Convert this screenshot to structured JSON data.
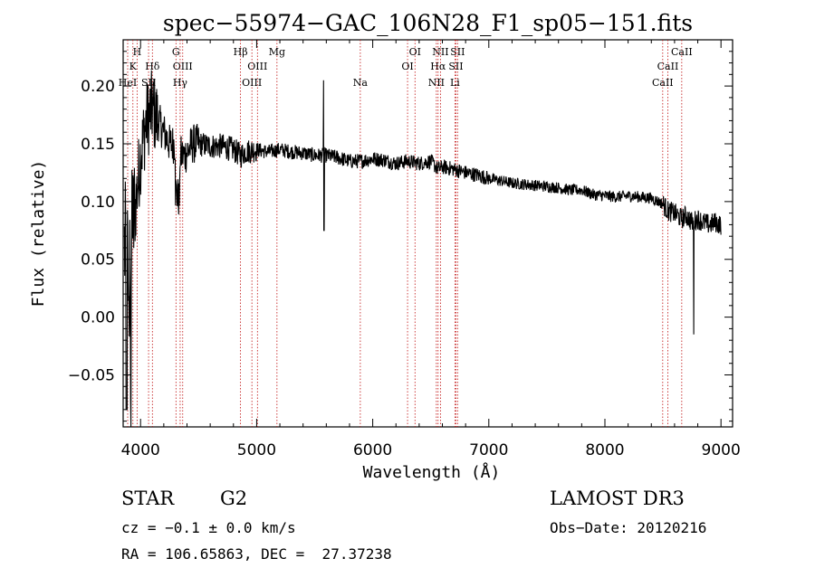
{
  "chart_data": {
    "type": "line",
    "title": "spec−55974−GAC_106N28_F1_sp05−151.fits",
    "xlabel": "Wavelength (Å)",
    "ylabel": "Flux (relative)",
    "xlim": [
      3850,
      9100
    ],
    "ylim": [
      -0.095,
      0.24
    ],
    "x_ticks": [
      4000,
      5000,
      6000,
      7000,
      8000,
      9000
    ],
    "x_tick_labels": [
      "4000",
      "5000",
      "6000",
      "7000",
      "8000",
      "9000"
    ],
    "y_ticks": [
      -0.05,
      0.0,
      0.05,
      0.1,
      0.15,
      0.2
    ],
    "y_tick_labels": [
      "−0.05",
      "0.00",
      "0.05",
      "0.10",
      "0.15",
      "0.20"
    ],
    "series": [
      {
        "name": "spectrum",
        "x": [
          3860,
          3900,
          3950,
          4000,
          4050,
          4100,
          4150,
          4200,
          4250,
          4300,
          4340,
          4380,
          4450,
          4500,
          4600,
          4700,
          4800,
          4861,
          4900,
          5000,
          5100,
          5200,
          5300,
          5400,
          5500,
          5577,
          5600,
          5700,
          5800,
          5893,
          6000,
          6100,
          6200,
          6300,
          6400,
          6500,
          6563,
          6600,
          6700,
          6800,
          6900,
          7000,
          7100,
          7200,
          7300,
          7400,
          7500,
          7600,
          7700,
          7800,
          7900,
          8000,
          8100,
          8200,
          8300,
          8400,
          8500,
          8542,
          8600,
          8662,
          8700,
          8750,
          8800,
          8850,
          8900,
          8950,
          9000
        ],
        "y": [
          0.06,
          0.05,
          0.09,
          0.14,
          0.17,
          0.18,
          0.17,
          0.16,
          0.15,
          0.15,
          0.14,
          0.14,
          0.15,
          0.15,
          0.148,
          0.148,
          0.145,
          0.14,
          0.143,
          0.145,
          0.143,
          0.145,
          0.143,
          0.142,
          0.14,
          0.14,
          0.14,
          0.138,
          0.135,
          0.135,
          0.137,
          0.136,
          0.133,
          0.135,
          0.133,
          0.135,
          0.128,
          0.13,
          0.128,
          0.125,
          0.123,
          0.12,
          0.118,
          0.116,
          0.115,
          0.114,
          0.113,
          0.112,
          0.11,
          0.11,
          0.106,
          0.105,
          0.104,
          0.105,
          0.104,
          0.103,
          0.098,
          0.092,
          0.09,
          0.085,
          0.088,
          0.082,
          0.085,
          0.082,
          0.08,
          0.082,
          0.08
        ]
      }
    ],
    "line_markers": [
      {
        "label": "H",
        "x": 3970,
        "row": 0
      },
      {
        "label": "K",
        "x": 3934,
        "row": 1
      },
      {
        "label": "Hδ",
        "x": 4102,
        "row": 1
      },
      {
        "label": "HeI",
        "x": 3889,
        "row": 2
      },
      {
        "label": "SII",
        "x": 4069,
        "row": 2
      },
      {
        "label": "G",
        "x": 4305,
        "row": 0
      },
      {
        "label": "OIII",
        "x": 4363,
        "row": 1
      },
      {
        "label": "Hγ",
        "x": 4341,
        "row": 2
      },
      {
        "label": "Hβ",
        "x": 4861,
        "row": 0
      },
      {
        "label": "OIII",
        "x": 5007,
        "row": 1
      },
      {
        "label": "OIII",
        "x": 4959,
        "row": 2
      },
      {
        "label": "Mg",
        "x": 5175,
        "row": 0
      },
      {
        "label": "Na",
        "x": 5893,
        "row": 2
      },
      {
        "label": "OI",
        "x": 6364,
        "row": 0
      },
      {
        "label": "OI",
        "x": 6300,
        "row": 1
      },
      {
        "label": "NII",
        "x": 6584,
        "row": 0
      },
      {
        "label": "SII",
        "x": 6731,
        "row": 0
      },
      {
        "label": "Hα",
        "x": 6563,
        "row": 1
      },
      {
        "label": "SII",
        "x": 6717,
        "row": 1
      },
      {
        "label": "NII",
        "x": 6548,
        "row": 2
      },
      {
        "label": "Li",
        "x": 6708,
        "row": 2
      },
      {
        "label": "CaII",
        "x": 8662,
        "row": 0
      },
      {
        "label": "CaII",
        "x": 8542,
        "row": 1
      },
      {
        "label": "CaII",
        "x": 8498,
        "row": 2
      }
    ],
    "grid": false,
    "legend": "none"
  },
  "info": {
    "object_class": "STAR",
    "subclass": "G2",
    "survey": "LAMOST DR3",
    "redshift": "cz = −0.1 ± 0.0 km/s",
    "obs_date": "Obs−Date: 20120216",
    "coords": "RA = 106.65863, DEC =  27.37238"
  }
}
